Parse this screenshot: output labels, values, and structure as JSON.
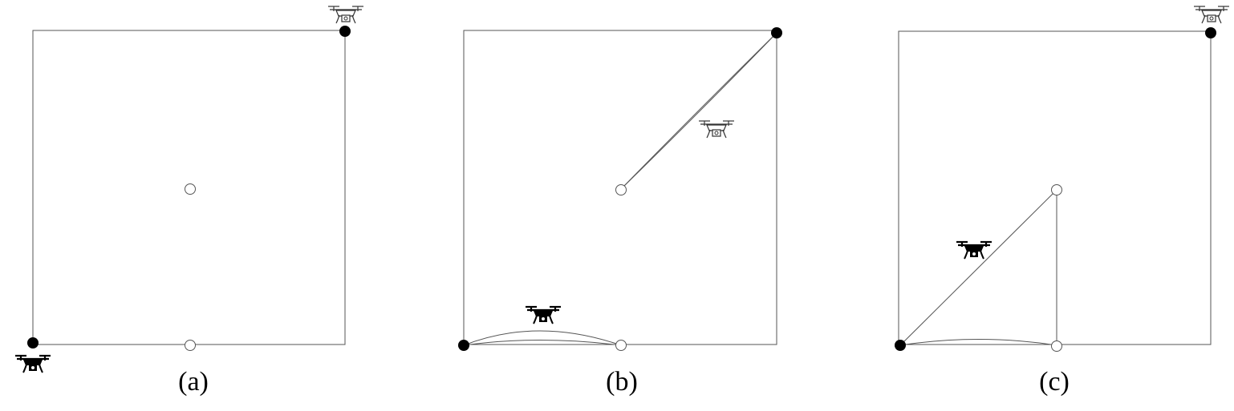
{
  "colors": {
    "line": "#555555",
    "filled_node": "#000000",
    "hollow_node": "#ffffff",
    "drone_dark": "#000000",
    "drone_light": "#ffffff"
  },
  "icons": {
    "filled_node": "filled-circle",
    "hollow_node": "hollow-circle",
    "drone_dark": "drone-icon",
    "drone_light": "drone-outline-icon"
  },
  "panels": [
    {
      "label": "(a)"
    },
    {
      "label": "(b)"
    },
    {
      "label": "(c)"
    }
  ]
}
